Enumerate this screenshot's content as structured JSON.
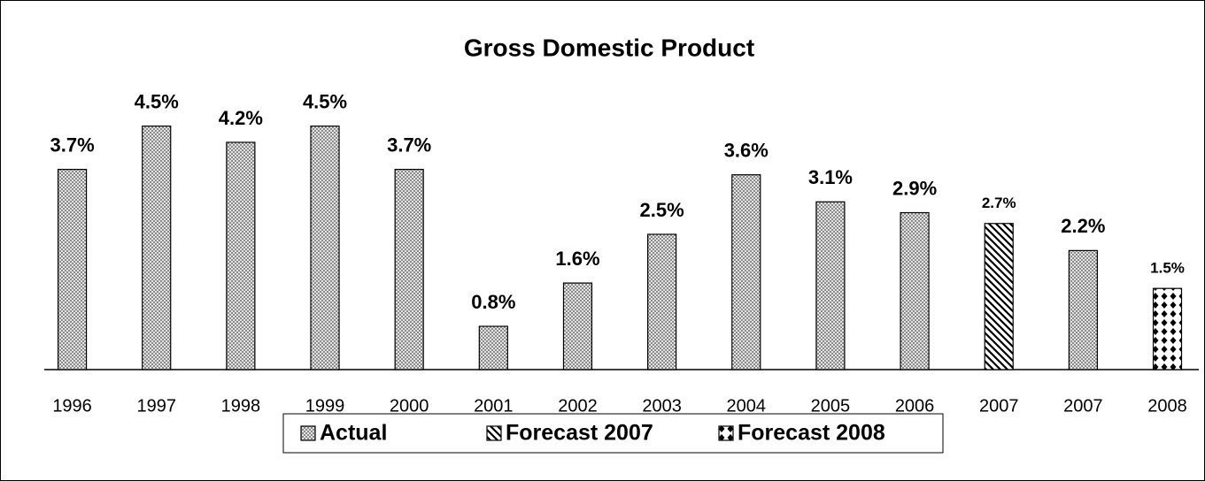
{
  "chart_data": {
    "type": "bar",
    "title": "Gross Domestic Product",
    "categories": [
      "1996",
      "1997",
      "1998",
      "1999",
      "2000",
      "2001",
      "2002",
      "2003",
      "2004",
      "2005",
      "2006",
      "2007",
      "2007",
      "2008"
    ],
    "series": [
      {
        "name": "Actual",
        "color": "#c0c0c0",
        "values": [
          3.7,
          4.5,
          4.2,
          4.5,
          3.7,
          0.8,
          1.6,
          2.5,
          3.6,
          3.1,
          2.9,
          null,
          2.2,
          null
        ],
        "value_labels": [
          "3.7%",
          "4.5%",
          "4.2%",
          "4.5%",
          "3.7%",
          "0.8%",
          "1.6%",
          "2.5%",
          "3.6%",
          "3.1%",
          "2.9%",
          null,
          "2.2%",
          null
        ]
      },
      {
        "name": "Forecast 2007",
        "color": "#000000",
        "values": [
          null,
          null,
          null,
          null,
          null,
          null,
          null,
          null,
          null,
          null,
          null,
          2.7,
          null,
          null
        ],
        "value_labels": [
          null,
          null,
          null,
          null,
          null,
          null,
          null,
          null,
          null,
          null,
          null,
          "2.7%",
          null,
          null
        ]
      },
      {
        "name": "Forecast 2008",
        "color": "#000000",
        "values": [
          null,
          null,
          null,
          null,
          null,
          null,
          null,
          null,
          null,
          null,
          null,
          null,
          null,
          1.5
        ],
        "value_labels": [
          null,
          null,
          null,
          null,
          null,
          null,
          null,
          null,
          null,
          null,
          null,
          null,
          null,
          "1.5%"
        ]
      }
    ],
    "ylim": [
      0,
      5
    ],
    "legend": "bottom"
  }
}
